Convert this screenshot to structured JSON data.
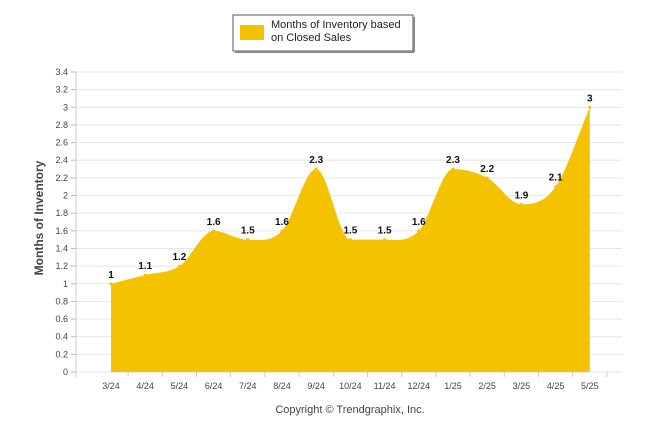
{
  "chart_data": {
    "type": "area",
    "categories": [
      "3/24",
      "4/24",
      "5/24",
      "6/24",
      "7/24",
      "8/24",
      "9/24",
      "10/24",
      "11/24",
      "12/24",
      "1/25",
      "2/25",
      "3/25",
      "4/25",
      "5/25"
    ],
    "series": [
      {
        "name": "Months of Inventory based on Closed Sales",
        "values": [
          1,
          1.1,
          1.2,
          1.6,
          1.5,
          1.6,
          2.3,
          1.5,
          1.5,
          1.6,
          2.3,
          2.2,
          1.9,
          2.1,
          3
        ],
        "color": "#f5c200"
      }
    ],
    "data_labels": [
      "1",
      "1.1",
      "1.2",
      "1.6",
      "1.5",
      "1.6",
      "2.3",
      "1.5",
      "1.5",
      "1.6",
      "2.3",
      "2.2",
      "1.9",
      "2.1",
      "3"
    ],
    "ylabel": "Months of Inventory",
    "xlabel": "",
    "ylim": [
      0,
      3.4
    ],
    "yticks": [
      0,
      0.2,
      0.4,
      0.6,
      0.8,
      1,
      1.2,
      1.4,
      1.6,
      1.8,
      2,
      2.2,
      2.4,
      2.6,
      2.8,
      3,
      3.2,
      3.4
    ],
    "ytick_labels": [
      "0",
      "0.2",
      "0.4",
      "0.6",
      "0.8",
      "1",
      "1.2",
      "1.4",
      "1.6",
      "1.8",
      "2",
      "2.2",
      "2.4",
      "2.6",
      "2.8",
      "3",
      "3.2",
      "3.4"
    ],
    "legend": {
      "line1": "Months of Inventory based",
      "line2": "on Closed Sales",
      "placement": "top-center"
    },
    "grid": true,
    "footer": "Copyright © Trendgraphix, Inc."
  }
}
